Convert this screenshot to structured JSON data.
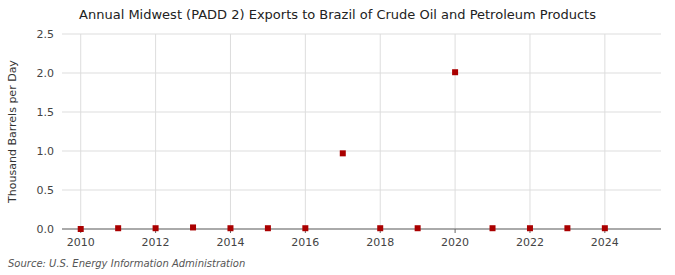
{
  "chart_data": {
    "type": "scatter",
    "title": "Annual Midwest (PADD 2) Exports to Brazil of Crude Oil and Petroleum Products",
    "y_label": "Thousand Barrels per Day",
    "source": "Source: U.S. Energy Information Administration",
    "x": [
      2010,
      2011,
      2012,
      2013,
      2014,
      2015,
      2016,
      2017,
      2018,
      2019,
      2020,
      2021,
      2022,
      2023,
      2024
    ],
    "values": [
      0.0,
      0.01,
      0.01,
      0.02,
      0.01,
      0.01,
      0.01,
      0.97,
      0.01,
      0.01,
      2.01,
      0.01,
      0.01,
      0.01,
      0.01
    ],
    "color": "#aa0000",
    "marker": "square",
    "xlim": [
      2009.5,
      2025.5
    ],
    "ylim": [
      0,
      2.5
    ],
    "xticks": [
      2010,
      2012,
      2014,
      2016,
      2018,
      2020,
      2022,
      2024
    ],
    "yticks": [
      {
        "value": 0,
        "label": "0.0"
      },
      0.5,
      {
        "value": 1,
        "label": "1.0"
      },
      1.5,
      {
        "value": 2,
        "label": "2.0"
      },
      2.5
    ],
    "grid": true
  }
}
